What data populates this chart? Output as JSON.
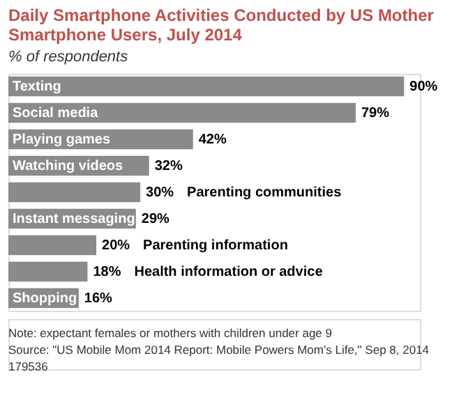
{
  "chart_data": {
    "type": "bar",
    "orientation": "horizontal",
    "title": "Daily Smartphone Activities Conducted by US Mother Smartphone Users, July 2014",
    "subtitle": "% of respondents",
    "categories": [
      "Texting",
      "Social media",
      "Playing games",
      "Watching videos",
      "Parenting communities",
      "Instant messaging",
      "Parenting information",
      "Health information or advice",
      "Shopping"
    ],
    "values": [
      90,
      79,
      42,
      32,
      30,
      29,
      20,
      18,
      16
    ],
    "value_labels": [
      "90%",
      "79%",
      "42%",
      "32%",
      "30%",
      "29%",
      "20%",
      "18%",
      "16%"
    ],
    "color": "#8a8a8a",
    "annotations": [
      "Note: expectant females or mothers with children under age 9",
      "Source: \"US Mobile Mom 2014 Report: Mobile Powers Mom's Life,\" Sep 8, 2014",
      "179536"
    ]
  }
}
